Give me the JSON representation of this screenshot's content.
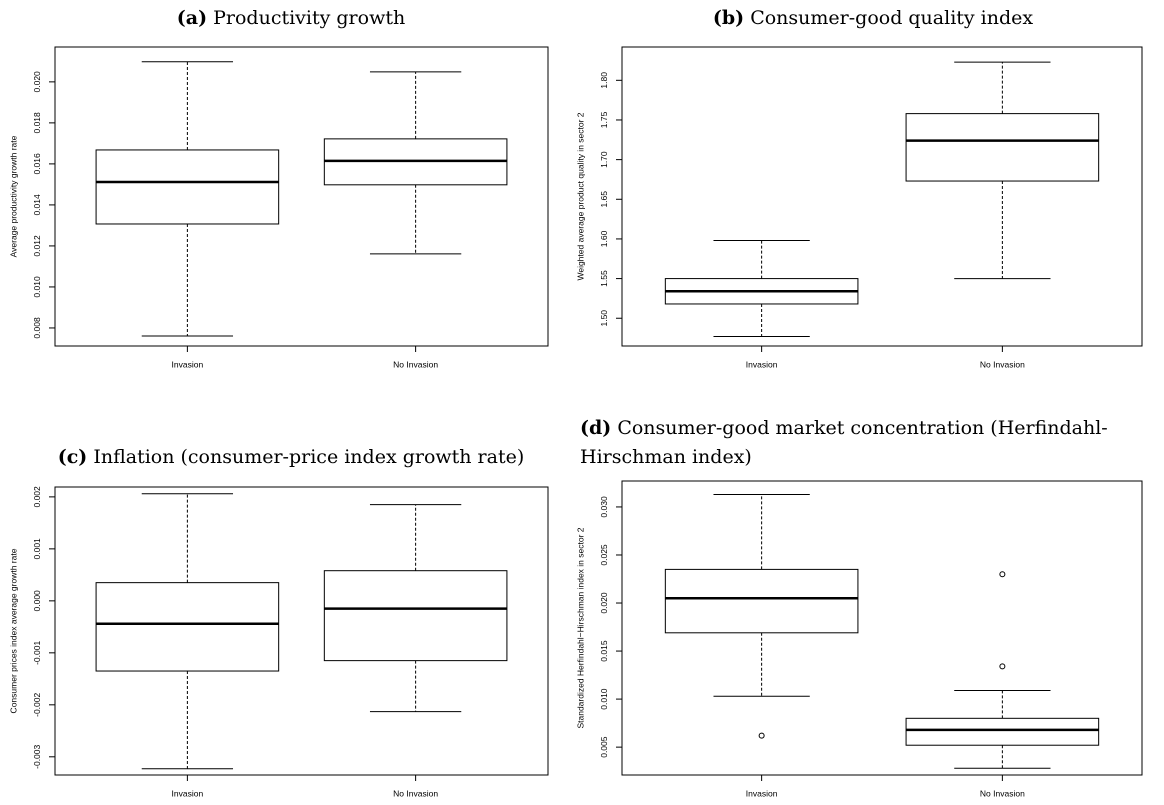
{
  "chart_data": [
    {
      "type": "box",
      "label": "(a)",
      "title": "Productivity growth",
      "ylabel": "Average productivity growth rate",
      "categories": [
        "Invasion",
        "No Invasion"
      ],
      "boxes": [
        {
          "whislo": 0.00761,
          "q1": 0.01307,
          "med": 0.01512,
          "q3": 0.01668,
          "whishi": 0.02098
        },
        {
          "whislo": 0.01161,
          "q1": 0.01498,
          "med": 0.01615,
          "q3": 0.01722,
          "whishi": 0.02049
        }
      ],
      "ylim": [
        0.00712,
        0.0217
      ],
      "yticks": [
        0.008,
        {
          "value": 0.01,
          "label": "0.010"
        },
        0.012,
        0.014,
        0.016,
        0.018,
        {
          "value": 0.02,
          "label": "0.020"
        }
      ]
    },
    {
      "type": "box",
      "label": "(b)",
      "title": "Consumer-good quality index",
      "ylabel": "Weighted average product quality in sector 2",
      "categories": [
        "Invasion",
        "No Invasion"
      ],
      "boxes": [
        {
          "whislo": 1.477,
          "q1": 1.518,
          "med": 1.534,
          "q3": 1.55,
          "whishi": 1.598
        },
        {
          "whislo": 1.55,
          "q1": 1.673,
          "med": 1.724,
          "q3": 1.758,
          "whishi": 1.823
        }
      ],
      "ylim": [
        1.465,
        1.842
      ],
      "yticks": [
        {
          "value": 1.5,
          "label": "1.50"
        },
        1.55,
        {
          "value": 1.6,
          "label": "1.60"
        },
        1.65,
        {
          "value": 1.7,
          "label": "1.70"
        },
        1.75,
        {
          "value": 1.8,
          "label": "1.80"
        }
      ]
    },
    {
      "type": "box",
      "label": "(c)",
      "title": "Inflation (consumer-price index growth rate)",
      "ylabel": "Consumer prices index average growth rate",
      "categories": [
        "Invasion",
        "No Invasion"
      ],
      "boxes": [
        {
          "whislo": -0.00323,
          "q1": -0.00135,
          "med": -0.00044,
          "q3": 0.00035,
          "whishi": 0.00206
        },
        {
          "whislo": -0.00213,
          "q1": -0.00115,
          "med": -0.00015,
          "q3": 0.00058,
          "whishi": 0.00185
        }
      ],
      "ylim": [
        -0.00335,
        0.00219
      ],
      "yticks": [
        -0.003,
        -0.002,
        -0.001,
        {
          "value": 0,
          "label": "0.000"
        },
        0.001,
        0.002
      ]
    },
    {
      "type": "box",
      "label": "(d)",
      "title": "Consumer-good market concentration (Herfindahl-Hirschman index)",
      "ylabel": "Standardized Herfindahl−Hirschman index in sector 2",
      "categories": [
        "Invasion",
        "No Invasion"
      ],
      "boxes": [
        {
          "whislo": 0.0103,
          "q1": 0.0169,
          "med": 0.0205,
          "q3": 0.0235,
          "whishi": 0.0313,
          "fliers": [
            0.0062
          ]
        },
        {
          "whislo": 0.0028,
          "q1": 0.0052,
          "med": 0.0068,
          "q3": 0.008,
          "whishi": 0.0109,
          "fliers": [
            0.0134,
            0.023
          ]
        }
      ],
      "ylim": [
        0.0021,
        0.0327
      ],
      "yticks": [
        0.005,
        {
          "value": 0.01,
          "label": "0.010"
        },
        0.015,
        {
          "value": 0.02,
          "label": "0.020"
        },
        0.025,
        {
          "value": 0.03,
          "label": "0.030"
        }
      ]
    }
  ]
}
